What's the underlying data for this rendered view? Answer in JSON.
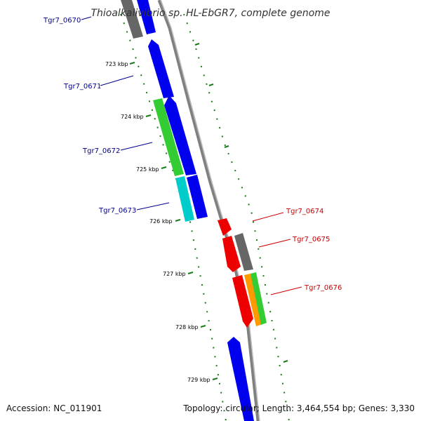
{
  "title": "Thioalkalivibrio sp. HL-EbGR7, complete genome",
  "footer": {
    "accession": "Accession: NC_011901",
    "summary": "Topology: circular; Length: 3,464,554 bp; Genes: 3,330"
  },
  "colors": {
    "backbone": "#808080",
    "tick": "#1a7a1a",
    "label_blue": "#00008b",
    "label_red": "#cc0000",
    "blue": "#0000ee",
    "green": "#33cc33",
    "cyan": "#00cccc",
    "red": "#ee0000",
    "gray": "#666666",
    "orange": "#ff9900"
  },
  "ticks": [
    {
      "label": "723 kbp"
    },
    {
      "label": "724 kbp"
    },
    {
      "label": "725 kbp"
    },
    {
      "label": "726 kbp"
    },
    {
      "label": "727 kbp"
    },
    {
      "label": "728 kbp"
    },
    {
      "label": "729 kbp"
    }
  ],
  "gene_labels_left": [
    {
      "label": "Tgr7_0670"
    },
    {
      "label": "Tgr7_0671"
    },
    {
      "label": "Tgr7_0672"
    },
    {
      "label": "Tgr7_0673"
    }
  ],
  "gene_labels_right": [
    {
      "label": "Tgr7_0674"
    },
    {
      "label": "Tgr7_0675"
    },
    {
      "label": "Tgr7_0676"
    }
  ]
}
